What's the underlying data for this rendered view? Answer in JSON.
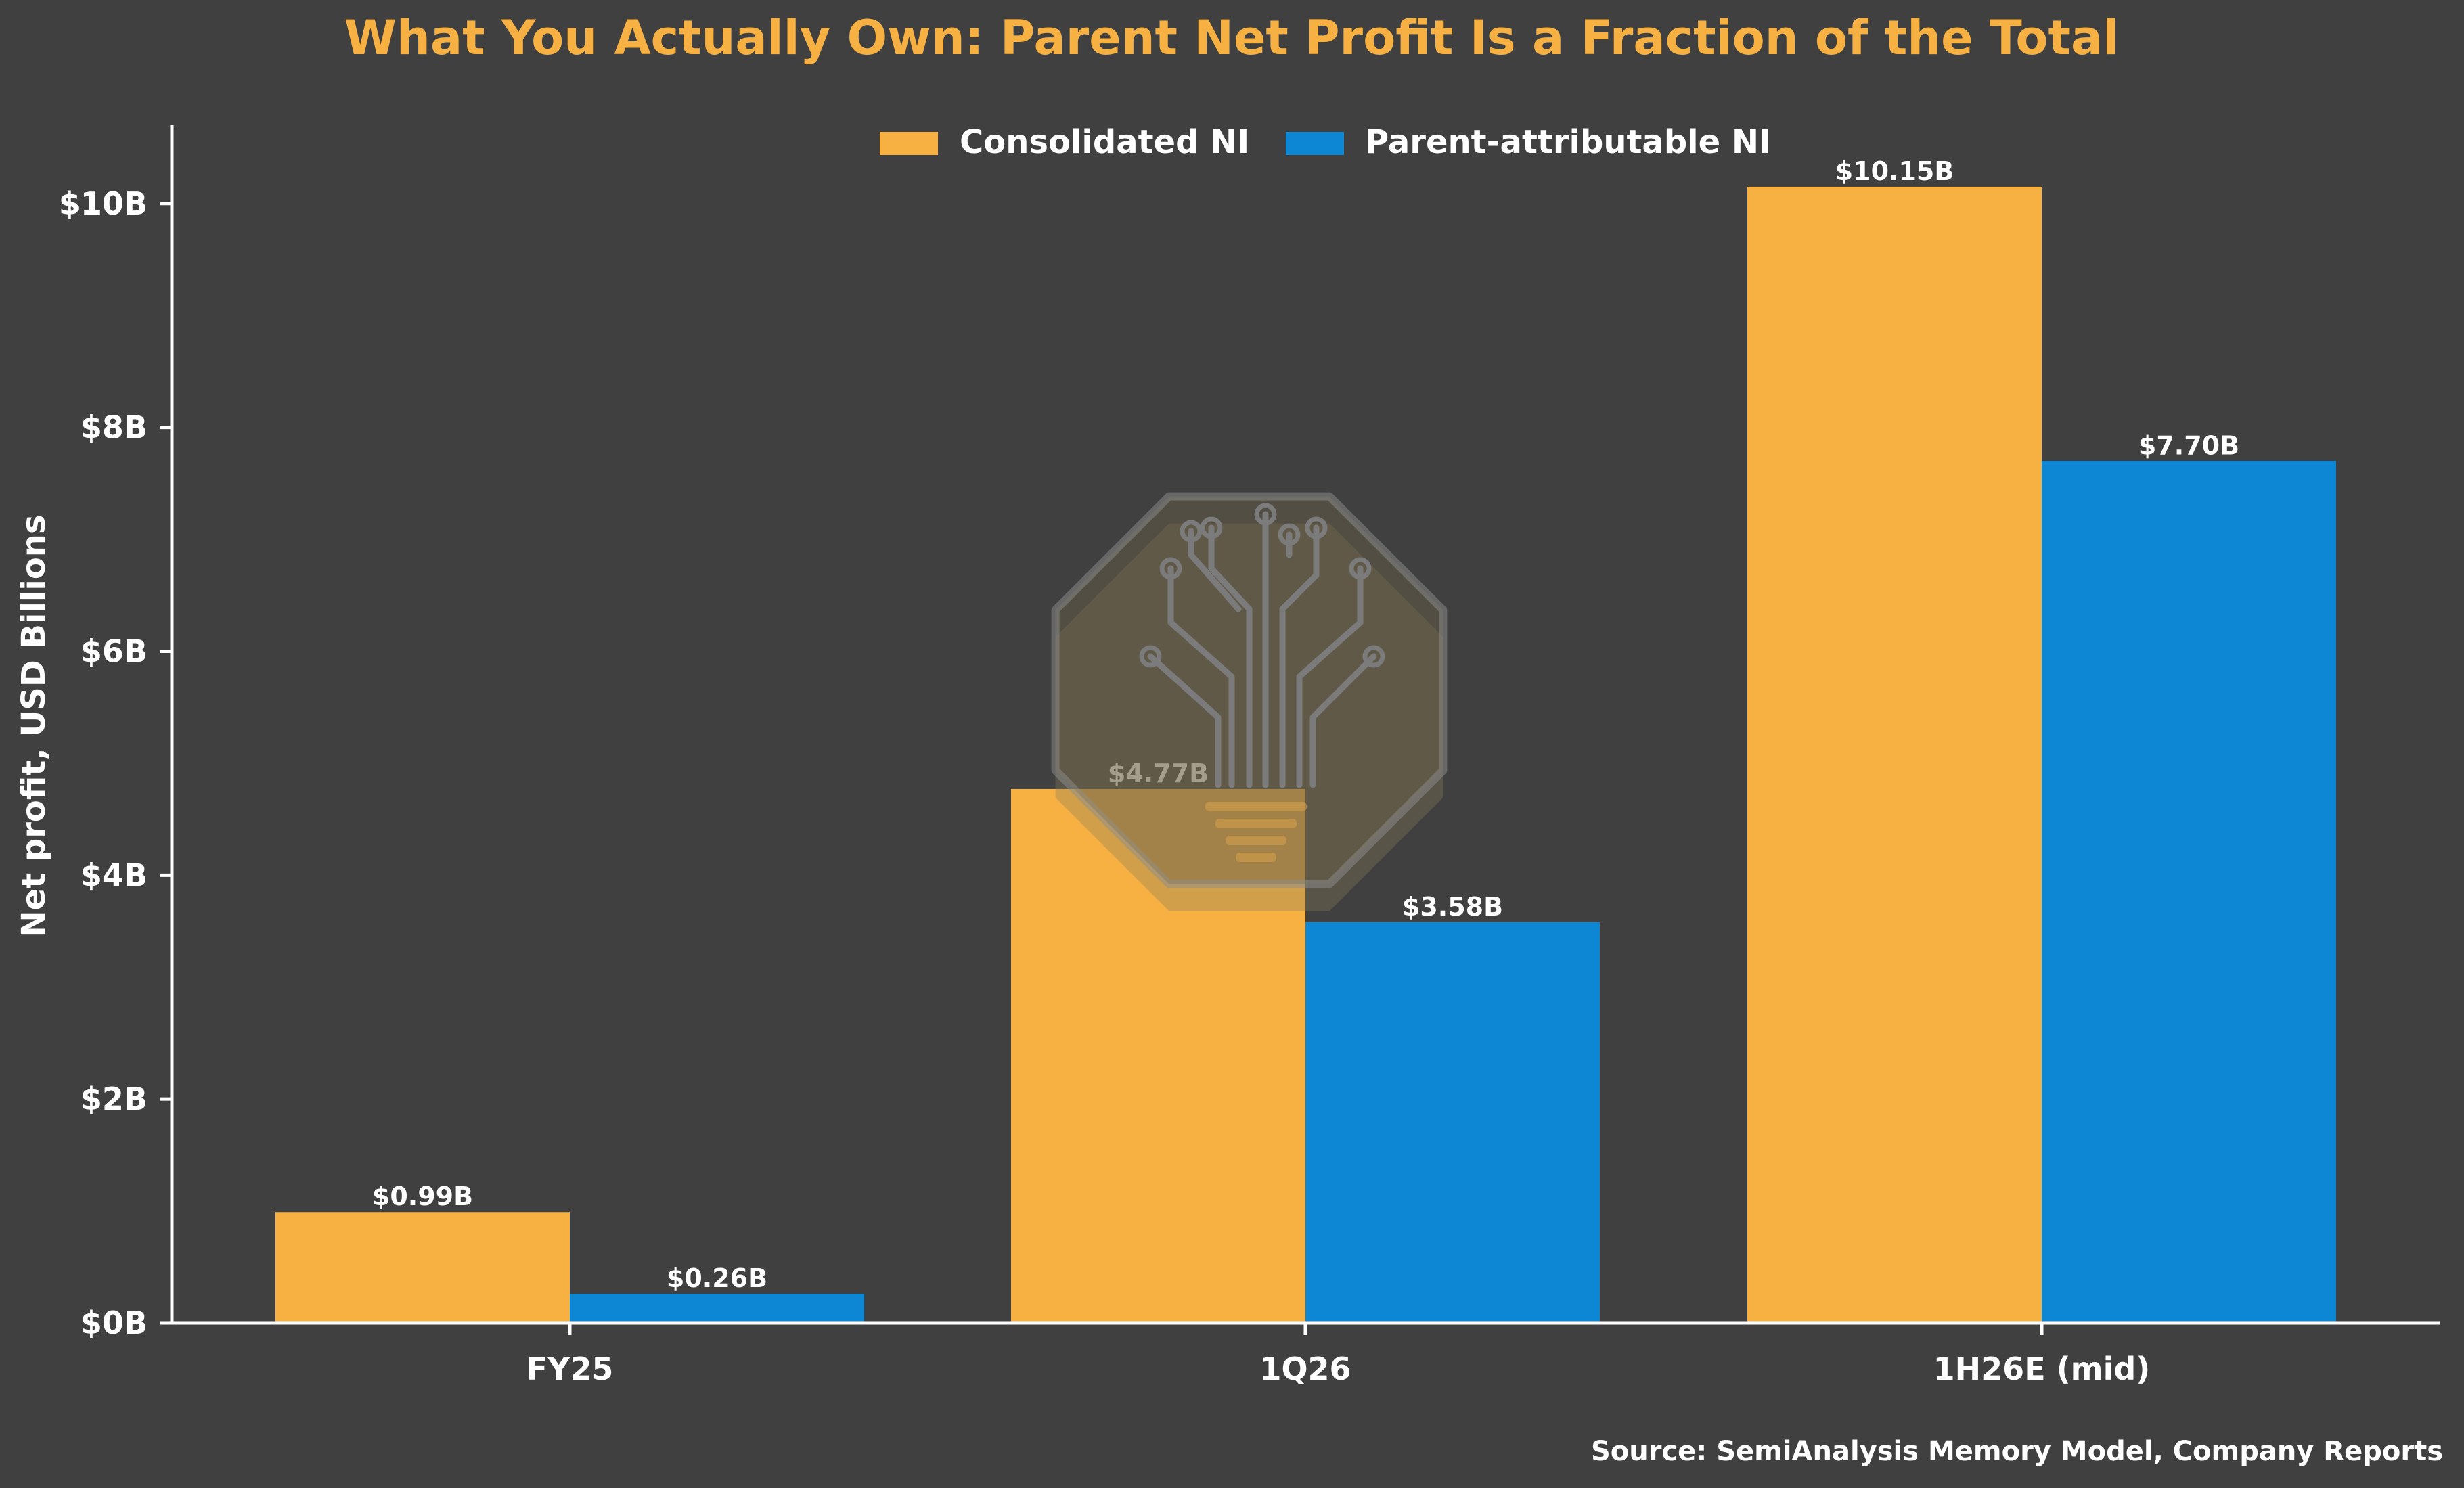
{
  "colors": {
    "background": "#404040",
    "consolidated": "#f7b143",
    "parent": "#0d87d3",
    "axis": "#ffffff",
    "text": "#ffffff",
    "title": "#f7b143"
  },
  "source": "Source: SemiAnalysis Memory Model, Company Reports",
  "watermark": {
    "icon": "circuit-tree-logo-icon"
  },
  "chart_data": {
    "type": "bar",
    "title": "What You Actually Own: Parent Net Profit Is a Fraction of the Total",
    "xlabel": "",
    "ylabel": "Net profit, USD Billions",
    "ylim": [
      0,
      10.7
    ],
    "yticks": [
      0,
      2,
      4,
      6,
      8,
      10
    ],
    "ytick_labels": [
      "$0B",
      "$2B",
      "$4B",
      "$6B",
      "$8B",
      "$10B"
    ],
    "grid": false,
    "legend_position": "top-center",
    "categories": [
      "FY25",
      "1Q26",
      "1H26E (mid)"
    ],
    "series": [
      {
        "name": "Consolidated NI",
        "color": "#f7b143",
        "values": [
          0.99,
          4.77,
          10.15
        ],
        "labels": [
          "$0.99B",
          "$4.77B",
          "$10.15B"
        ]
      },
      {
        "name": "Parent-attributable NI",
        "color": "#0d87d3",
        "values": [
          0.26,
          3.58,
          7.7
        ],
        "labels": [
          "$0.26B",
          "$3.58B",
          "$7.70B"
        ]
      }
    ]
  }
}
